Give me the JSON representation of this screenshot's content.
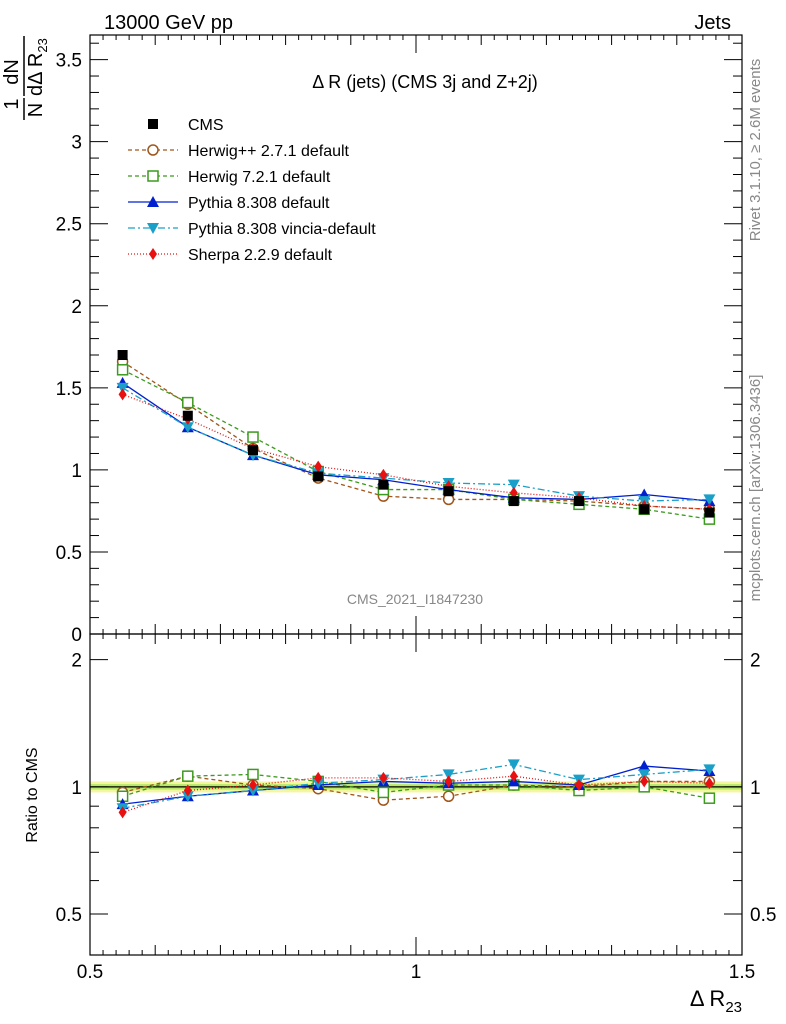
{
  "header": {
    "left": "13000 GeV pp",
    "right": "Jets"
  },
  "side_labels": {
    "rivet": "Rivet 3.1.10, ≥ 2.6M events",
    "mcplots": "mcplots.cern.ch [arXiv:1306.3436]"
  },
  "chart_data": {
    "type": "line",
    "title": "Δ R (jets) (CMS 3j and Z+2j)",
    "watermark": "CMS_2021_I1847230",
    "xlabel": "Δ R",
    "xlabel_sub": "23",
    "ylabel_frac_num": "1",
    "ylabel_frac_den": "N",
    "ylabel_rhs_num": "dN",
    "ylabel_rhs_den": "dΔ R",
    "ylabel_rhs_den_sub": "23",
    "ratio_ylabel": "Ratio to CMS",
    "xlim": [
      0.5,
      1.5
    ],
    "ylim": [
      0,
      3.65
    ],
    "ratio_ylim": [
      0.4,
      2.3
    ],
    "x_ticks": [
      "0.5",
      "1",
      "1.5"
    ],
    "y_ticks": [
      "0",
      "0.5",
      "1",
      "1.5",
      "2",
      "2.5",
      "3",
      "3.5"
    ],
    "ratio_ticks": [
      "0.5",
      "1",
      "2"
    ],
    "x": [
      0.55,
      0.65,
      0.75,
      0.85,
      0.95,
      1.05,
      1.15,
      1.25,
      1.35,
      1.45
    ],
    "series": [
      {
        "name": "CMS",
        "color": "#000000",
        "marker": "square-filled",
        "dash": "none",
        "values": [
          1.7,
          1.33,
          1.12,
          0.96,
          0.91,
          0.87,
          0.81,
          0.81,
          0.76,
          0.74
        ],
        "ratio": [
          1,
          1,
          1,
          1,
          1,
          1,
          1,
          1,
          1,
          1
        ]
      },
      {
        "name": "Herwig++ 2.7.1 default",
        "color": "#a0561a",
        "marker": "circle-open",
        "dash": "4,3",
        "values": [
          1.66,
          1.4,
          1.13,
          0.95,
          0.84,
          0.82,
          0.82,
          0.81,
          0.78,
          0.76
        ],
        "ratio": [
          0.97,
          1.06,
          1.01,
          0.99,
          0.93,
          0.95,
          1.01,
          1.0,
          1.03,
          1.03
        ]
      },
      {
        "name": "Herwig 7.2.1 default",
        "color": "#3c9a1e",
        "marker": "square-open",
        "dash": "4,3",
        "values": [
          1.61,
          1.41,
          1.2,
          0.99,
          0.88,
          0.88,
          0.82,
          0.79,
          0.76,
          0.7
        ],
        "ratio": [
          0.95,
          1.06,
          1.07,
          1.03,
          0.97,
          1.01,
          1.01,
          0.98,
          1.0,
          0.94
        ]
      },
      {
        "name": "Pythia 8.308 default",
        "color": "#0020d0",
        "marker": "triangle-up",
        "dash": "none",
        "values": [
          1.53,
          1.26,
          1.09,
          0.97,
          0.94,
          0.88,
          0.83,
          0.82,
          0.85,
          0.81
        ],
        "ratio": [
          0.91,
          0.95,
          0.98,
          1.01,
          1.03,
          1.02,
          1.03,
          1.01,
          1.12,
          1.09
        ]
      },
      {
        "name": "Pythia 8.308 vincia-default",
        "color": "#1aa0c8",
        "marker": "triangle-down",
        "dash": "7,3,2,3",
        "values": [
          1.5,
          1.26,
          1.09,
          0.98,
          0.95,
          0.92,
          0.91,
          0.84,
          0.81,
          0.82
        ],
        "ratio": [
          0.89,
          0.95,
          0.98,
          1.02,
          1.04,
          1.07,
          1.13,
          1.04,
          1.07,
          1.1
        ]
      },
      {
        "name": "Sherpa 2.2.9 default",
        "color": "#e81010",
        "marker": "diamond",
        "dash": "1,2",
        "values": [
          1.46,
          1.31,
          1.13,
          1.02,
          0.97,
          0.9,
          0.86,
          0.83,
          0.78,
          0.76
        ],
        "ratio": [
          0.87,
          0.98,
          1.01,
          1.05,
          1.05,
          1.03,
          1.06,
          1.01,
          1.03,
          1.02
        ]
      }
    ]
  }
}
